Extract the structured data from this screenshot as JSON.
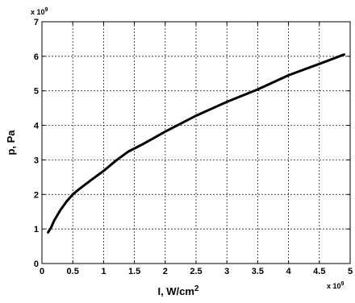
{
  "chart_data": {
    "type": "line",
    "title": "",
    "xlabel": "I, W/cm",
    "xlabel_superscript": "2",
    "ylabel": "p, Pa",
    "x_multiplier": "x 10",
    "x_multiplier_exponent": "9",
    "y_multiplier": "x 10",
    "y_multiplier_exponent": "9",
    "xlim": [
      0,
      5
    ],
    "ylim": [
      0,
      7
    ],
    "xticks": [
      "0",
      "0.5",
      "1",
      "1.5",
      "2",
      "2.5",
      "3",
      "3.5",
      "4",
      "4.5",
      "5"
    ],
    "yticks": [
      "0",
      "1",
      "2",
      "3",
      "4",
      "5",
      "6",
      "7"
    ],
    "grid": true,
    "line_color": "#000000",
    "series": [
      {
        "x": [
          0.1,
          0.15,
          0.2,
          0.3,
          0.4,
          0.5,
          0.6,
          0.8,
          1.0,
          1.2,
          1.4,
          1.6,
          1.8,
          2.0,
          2.5,
          3.0,
          3.5,
          4.0,
          4.5,
          4.9
        ],
        "y": [
          0.9,
          1.05,
          1.25,
          1.55,
          1.8,
          2.0,
          2.15,
          2.42,
          2.68,
          2.98,
          3.24,
          3.42,
          3.62,
          3.82,
          4.28,
          4.68,
          5.04,
          5.45,
          5.78,
          6.05
        ]
      }
    ]
  }
}
